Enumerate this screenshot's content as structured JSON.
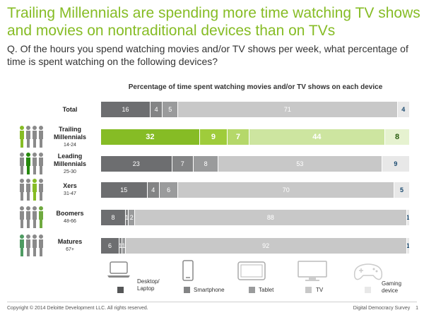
{
  "header": {
    "title": "Trailing Millennials are spending more time watching TV shows and movies on nontraditional devices than on TVs",
    "question": "Q. Of the hours you spend watching movies and/or TV shows per week, what percentage of time is spent watching on the following devices?"
  },
  "chart_data": {
    "type": "bar",
    "stacked": true,
    "orientation": "horizontal",
    "title": "Percentage of time spent watching movies and/or TV shows on each device",
    "categories": [
      {
        "name": "Total",
        "age": ""
      },
      {
        "name": "Trailing Millennials",
        "age": "14-24"
      },
      {
        "name": "Leading Millennials",
        "age": "25-30"
      },
      {
        "name": "Xers",
        "age": "31-47"
      },
      {
        "name": "Boomers",
        "age": "48-66"
      },
      {
        "name": "Matures",
        "age": "67+"
      }
    ],
    "series": [
      {
        "name": "Desktop/ Laptop",
        "values": [
          16,
          32,
          23,
          15,
          8,
          6
        ]
      },
      {
        "name": "Smartphone",
        "values": [
          4,
          9,
          7,
          4,
          1,
          1
        ]
      },
      {
        "name": "Tablet",
        "values": [
          5,
          7,
          8,
          6,
          2,
          1
        ]
      },
      {
        "name": "TV",
        "values": [
          71,
          44,
          53,
          70,
          88,
          92
        ]
      },
      {
        "name": "Gaming device",
        "values": [
          4,
          8,
          9,
          5,
          1,
          1
        ]
      }
    ],
    "colors": {
      "default": [
        "#6d6e70",
        "#838485",
        "#9a9b9c",
        "#c8c8c8",
        "#e8e8e8"
      ],
      "highlight": [
        "#86bc25",
        "#9fcc3b",
        "#b5d86a",
        "#cde5a0",
        "#e6f2d0"
      ]
    },
    "highlight_row": 1
  },
  "legend": {
    "items": [
      {
        "label": "Desktop/\nLaptop",
        "icon": "laptop-icon",
        "color": "#555657"
      },
      {
        "label": "Smartphone",
        "icon": "smartphone-icon",
        "color": "#838485"
      },
      {
        "label": "Tablet",
        "icon": "tablet-icon",
        "color": "#9a9b9c"
      },
      {
        "label": "TV",
        "icon": "tv-icon",
        "color": "#c8c8c8"
      },
      {
        "label": "Gaming\ndevice",
        "icon": "gamepad-icon",
        "color": "#e8e8e8"
      }
    ]
  },
  "footer": {
    "copyright": "Copyright © 2014 Deloitte Development LLC. All rights reserved.",
    "survey": "Digital Democracy Survey",
    "page": "1"
  }
}
